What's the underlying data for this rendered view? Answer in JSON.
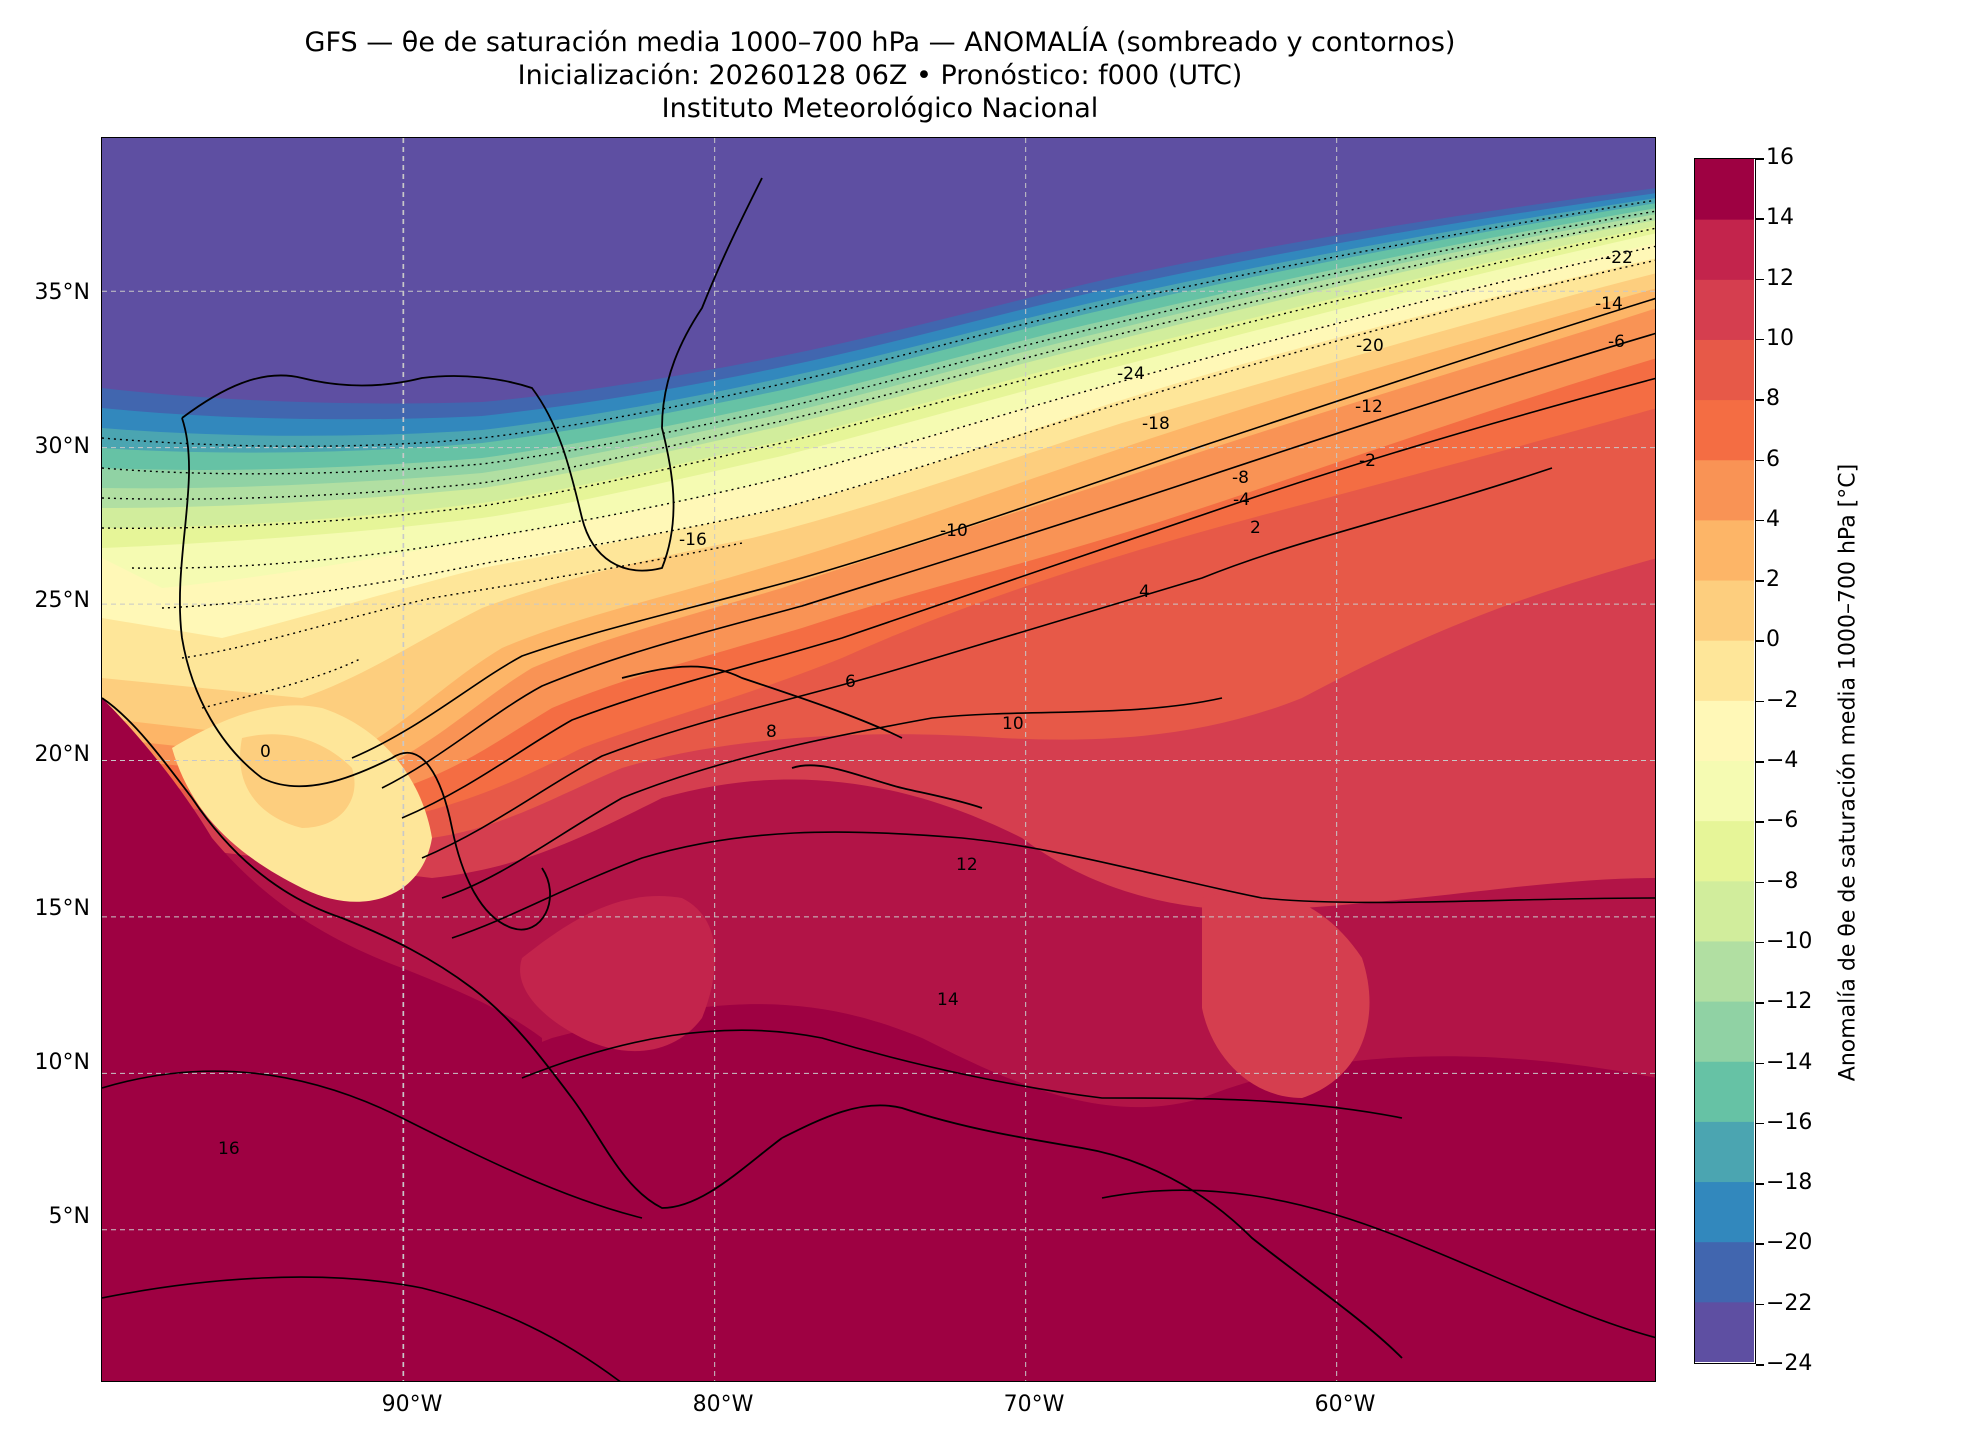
{
  "header": {
    "title": "GFS — θe de saturación media 1000–700 hPa — ANOMALÍA (sombreado y contornos)",
    "subtitle": "Inicialización: 20260128 06Z   •   Pronóstico: f000 (UTC)",
    "institution": "Instituto Meteorológico Nacional"
  },
  "map": {
    "lat_labels": [
      "35°N",
      "30°N",
      "25°N",
      "20°N",
      "15°N",
      "10°N",
      "5°N"
    ],
    "lon_labels": [
      "90°W",
      "80°W",
      "70°W",
      "60°W"
    ],
    "lat_values": [
      35,
      30,
      25,
      20,
      15,
      10,
      5
    ],
    "lon_values": [
      -90,
      -80,
      -70,
      -60
    ],
    "extent": {
      "lon_min": -99.7,
      "lon_max": -49.7,
      "lat_min": 0.1,
      "lat_max": 39.9
    },
    "gridlines": true,
    "contour_labels": [
      "-24",
      "-22",
      "-20",
      "-18",
      "-16",
      "-14",
      "-12",
      "-10",
      "-8",
      "-6",
      "-4",
      "-2",
      "0",
      "2",
      "4",
      "6",
      "8",
      "10",
      "12",
      "14",
      "16"
    ]
  },
  "colorbar": {
    "label": "Anomalía de θe de saturación media 1000–700 hPa [°C]",
    "ticks": [
      "16",
      "14",
      "12",
      "10",
      "8",
      "6",
      "4",
      "2",
      "0",
      "−2",
      "−4",
      "−6",
      "−8",
      "−10",
      "−12",
      "−14",
      "−16",
      "−18",
      "−20",
      "−22",
      "−24"
    ],
    "min": -24,
    "max": 16,
    "colors": [
      "#5e4fa2",
      "#4166af",
      "#3288bd",
      "#4ba5b1",
      "#66c2a5",
      "#90d2a4",
      "#b1dfa2",
      "#d1ed9c",
      "#e6f598",
      "#f5fbb2",
      "#fff8b7",
      "#fee699",
      "#fdce7e",
      "#fdb567",
      "#f99355",
      "#f46d43",
      "#e75948",
      "#d53e4f",
      "#c3244c",
      "#9e0142"
    ]
  }
}
